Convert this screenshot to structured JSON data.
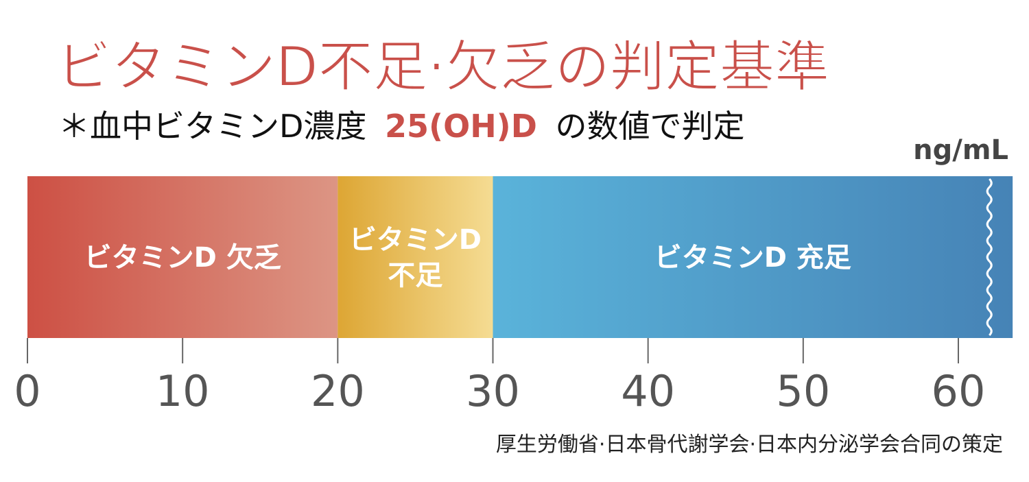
{
  "chart_data": {
    "type": "range",
    "title": "ビタミンD不足·欠乏の判定基準",
    "subtitle": [
      "＊血中ビタミンD濃度",
      "25(OH)D",
      "の数値で判定"
    ],
    "x_label": "ng/mL",
    "xlim": [
      0,
      63.5
    ],
    "xticks": [
      0,
      10,
      20,
      30,
      40,
      50,
      60
    ],
    "axis_break": 62,
    "segments": [
      {
        "name": "ビタミンD 欠乏",
        "range": [
          0,
          20
        ],
        "colors": [
          "#cd5044",
          "#dc9584"
        ]
      },
      {
        "name": "ビタミンD\n不足",
        "range": [
          20,
          30
        ],
        "colors": [
          "#dda634",
          "#f5dc93"
        ]
      },
      {
        "name": "ビタミンD 充足",
        "range": [
          30,
          63.5
        ],
        "colors": [
          "#5ab3da",
          "#4683b6"
        ]
      }
    ],
    "source": "厚生労働省·日本骨代謝学会·日本内分泌学会合同の策定"
  }
}
